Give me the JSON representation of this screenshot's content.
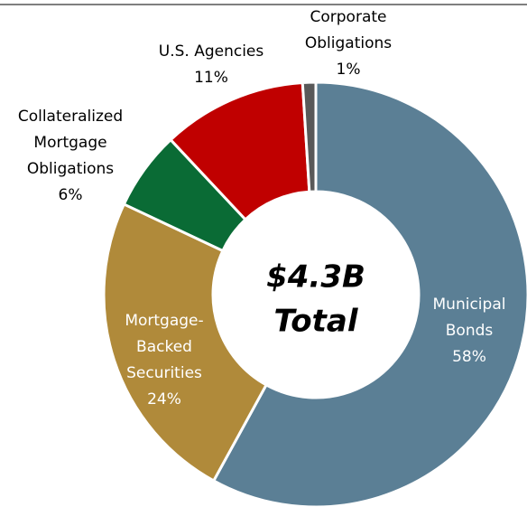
{
  "chart_data": {
    "type": "donut",
    "categories": [
      [
        "Municipal",
        "Bonds"
      ],
      [
        "Mortgage-",
        "Backed",
        "Securities"
      ],
      [
        "Collateralized",
        "Mortgage",
        "Obligations"
      ],
      [
        "U.S. Agencies"
      ],
      [
        "Corporate",
        "Obligations"
      ]
    ],
    "values": [
      58,
      24,
      6,
      11,
      1
    ],
    "value_labels": [
      "58%",
      "24%",
      "6%",
      "11%",
      "1%"
    ],
    "colors": [
      "#5b7f95",
      "#b08a3a",
      "#0a6b35",
      "#c00000",
      "#595959"
    ],
    "center_label": [
      "$4.3B",
      "Total"
    ]
  }
}
